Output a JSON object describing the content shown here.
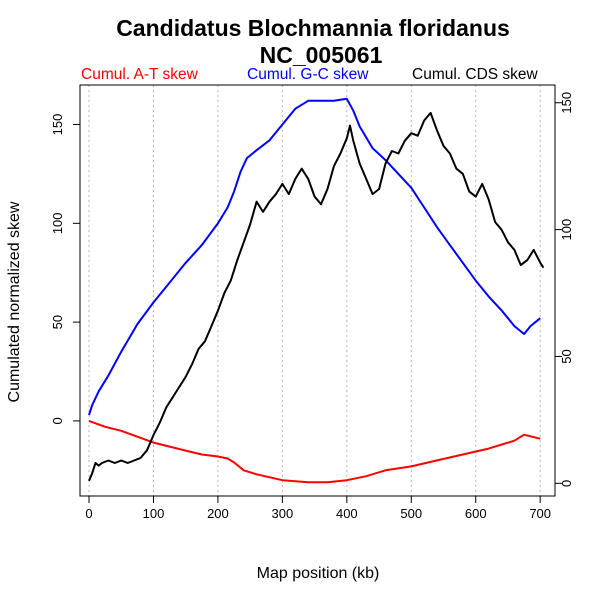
{
  "chart_data": {
    "type": "line",
    "title": "Candidatus Blochmannia floridanus",
    "subtitle": "NC_005061",
    "xlabel": "Map position (kb)",
    "ylabel": "Cumulated normalized skew",
    "xlim": [
      -14,
      723
    ],
    "ylim": [
      -38,
      170
    ],
    "ylim_right": [
      -5,
      157
    ],
    "x_ticks": [
      0,
      100,
      200,
      300,
      400,
      500,
      600,
      700
    ],
    "y_ticks": [
      0,
      50,
      100,
      150
    ],
    "y_ticks_right": [
      0,
      50,
      100,
      150
    ],
    "grid": "vertical dotted lines at x ticks",
    "legend_position": "top, above plot",
    "series": [
      {
        "name": "Cumul. A-T skew",
        "color": "#ff0000",
        "axis": "left",
        "x": [
          0,
          25,
          50,
          75,
          100,
          125,
          150,
          175,
          200,
          215,
          225,
          240,
          260,
          300,
          340,
          370,
          400,
          430,
          460,
          500,
          540,
          580,
          620,
          660,
          675,
          700
        ],
        "y": [
          0,
          -3,
          -5,
          -8,
          -11,
          -13,
          -15,
          -17,
          -18,
          -19,
          -21,
          -25,
          -27,
          -30,
          -31,
          -31,
          -30,
          -28,
          -25,
          -23,
          -20,
          -17,
          -14,
          -10,
          -7,
          -9
        ]
      },
      {
        "name": "Cumul. G-C skew",
        "color": "#0000ff",
        "axis": "left",
        "x": [
          0,
          5,
          15,
          30,
          50,
          75,
          100,
          125,
          150,
          175,
          200,
          215,
          225,
          235,
          245,
          260,
          280,
          300,
          320,
          340,
          360,
          380,
          400,
          410,
          420,
          440,
          460,
          480,
          500,
          520,
          540,
          560,
          580,
          600,
          620,
          640,
          660,
          675,
          685,
          700
        ],
        "y": [
          3,
          8,
          15,
          23,
          35,
          49,
          60,
          70,
          80,
          89,
          100,
          108,
          116,
          126,
          133,
          137,
          142,
          150,
          158,
          162,
          162,
          162,
          163,
          157,
          149,
          138,
          132,
          125,
          118,
          108,
          98,
          89,
          80,
          71,
          63,
          56,
          48,
          44,
          48,
          52
        ]
      },
      {
        "name": "Cumul. CDS skew",
        "color": "#000000",
        "axis": "right",
        "x": [
          0,
          5,
          10,
          15,
          20,
          30,
          40,
          50,
          60,
          70,
          80,
          90,
          100,
          110,
          120,
          130,
          140,
          150,
          160,
          170,
          180,
          190,
          200,
          210,
          220,
          230,
          240,
          250,
          260,
          270,
          280,
          290,
          300,
          310,
          320,
          330,
          340,
          350,
          360,
          370,
          380,
          390,
          400,
          405,
          410,
          420,
          430,
          440,
          450,
          460,
          470,
          480,
          490,
          500,
          510,
          520,
          530,
          540,
          550,
          560,
          570,
          580,
          590,
          600,
          610,
          620,
          630,
          640,
          650,
          660,
          670,
          680,
          690,
          700,
          705
        ],
        "y": [
          1,
          4,
          8,
          7,
          8,
          9,
          8,
          9,
          8,
          9,
          10,
          13,
          19,
          24,
          30,
          34,
          38,
          42,
          47,
          53,
          56,
          62,
          68,
          75,
          80,
          88,
          95,
          102,
          111,
          107,
          111,
          114,
          118,
          114,
          120,
          124,
          120,
          113,
          110,
          116,
          125,
          130,
          136,
          141,
          135,
          126,
          120,
          114,
          116,
          126,
          131,
          130,
          135,
          138,
          137,
          143,
          146,
          139,
          133,
          130,
          124,
          122,
          115,
          113,
          118,
          112,
          103,
          100,
          95,
          92,
          86,
          88,
          92,
          87,
          85
        ]
      }
    ]
  }
}
